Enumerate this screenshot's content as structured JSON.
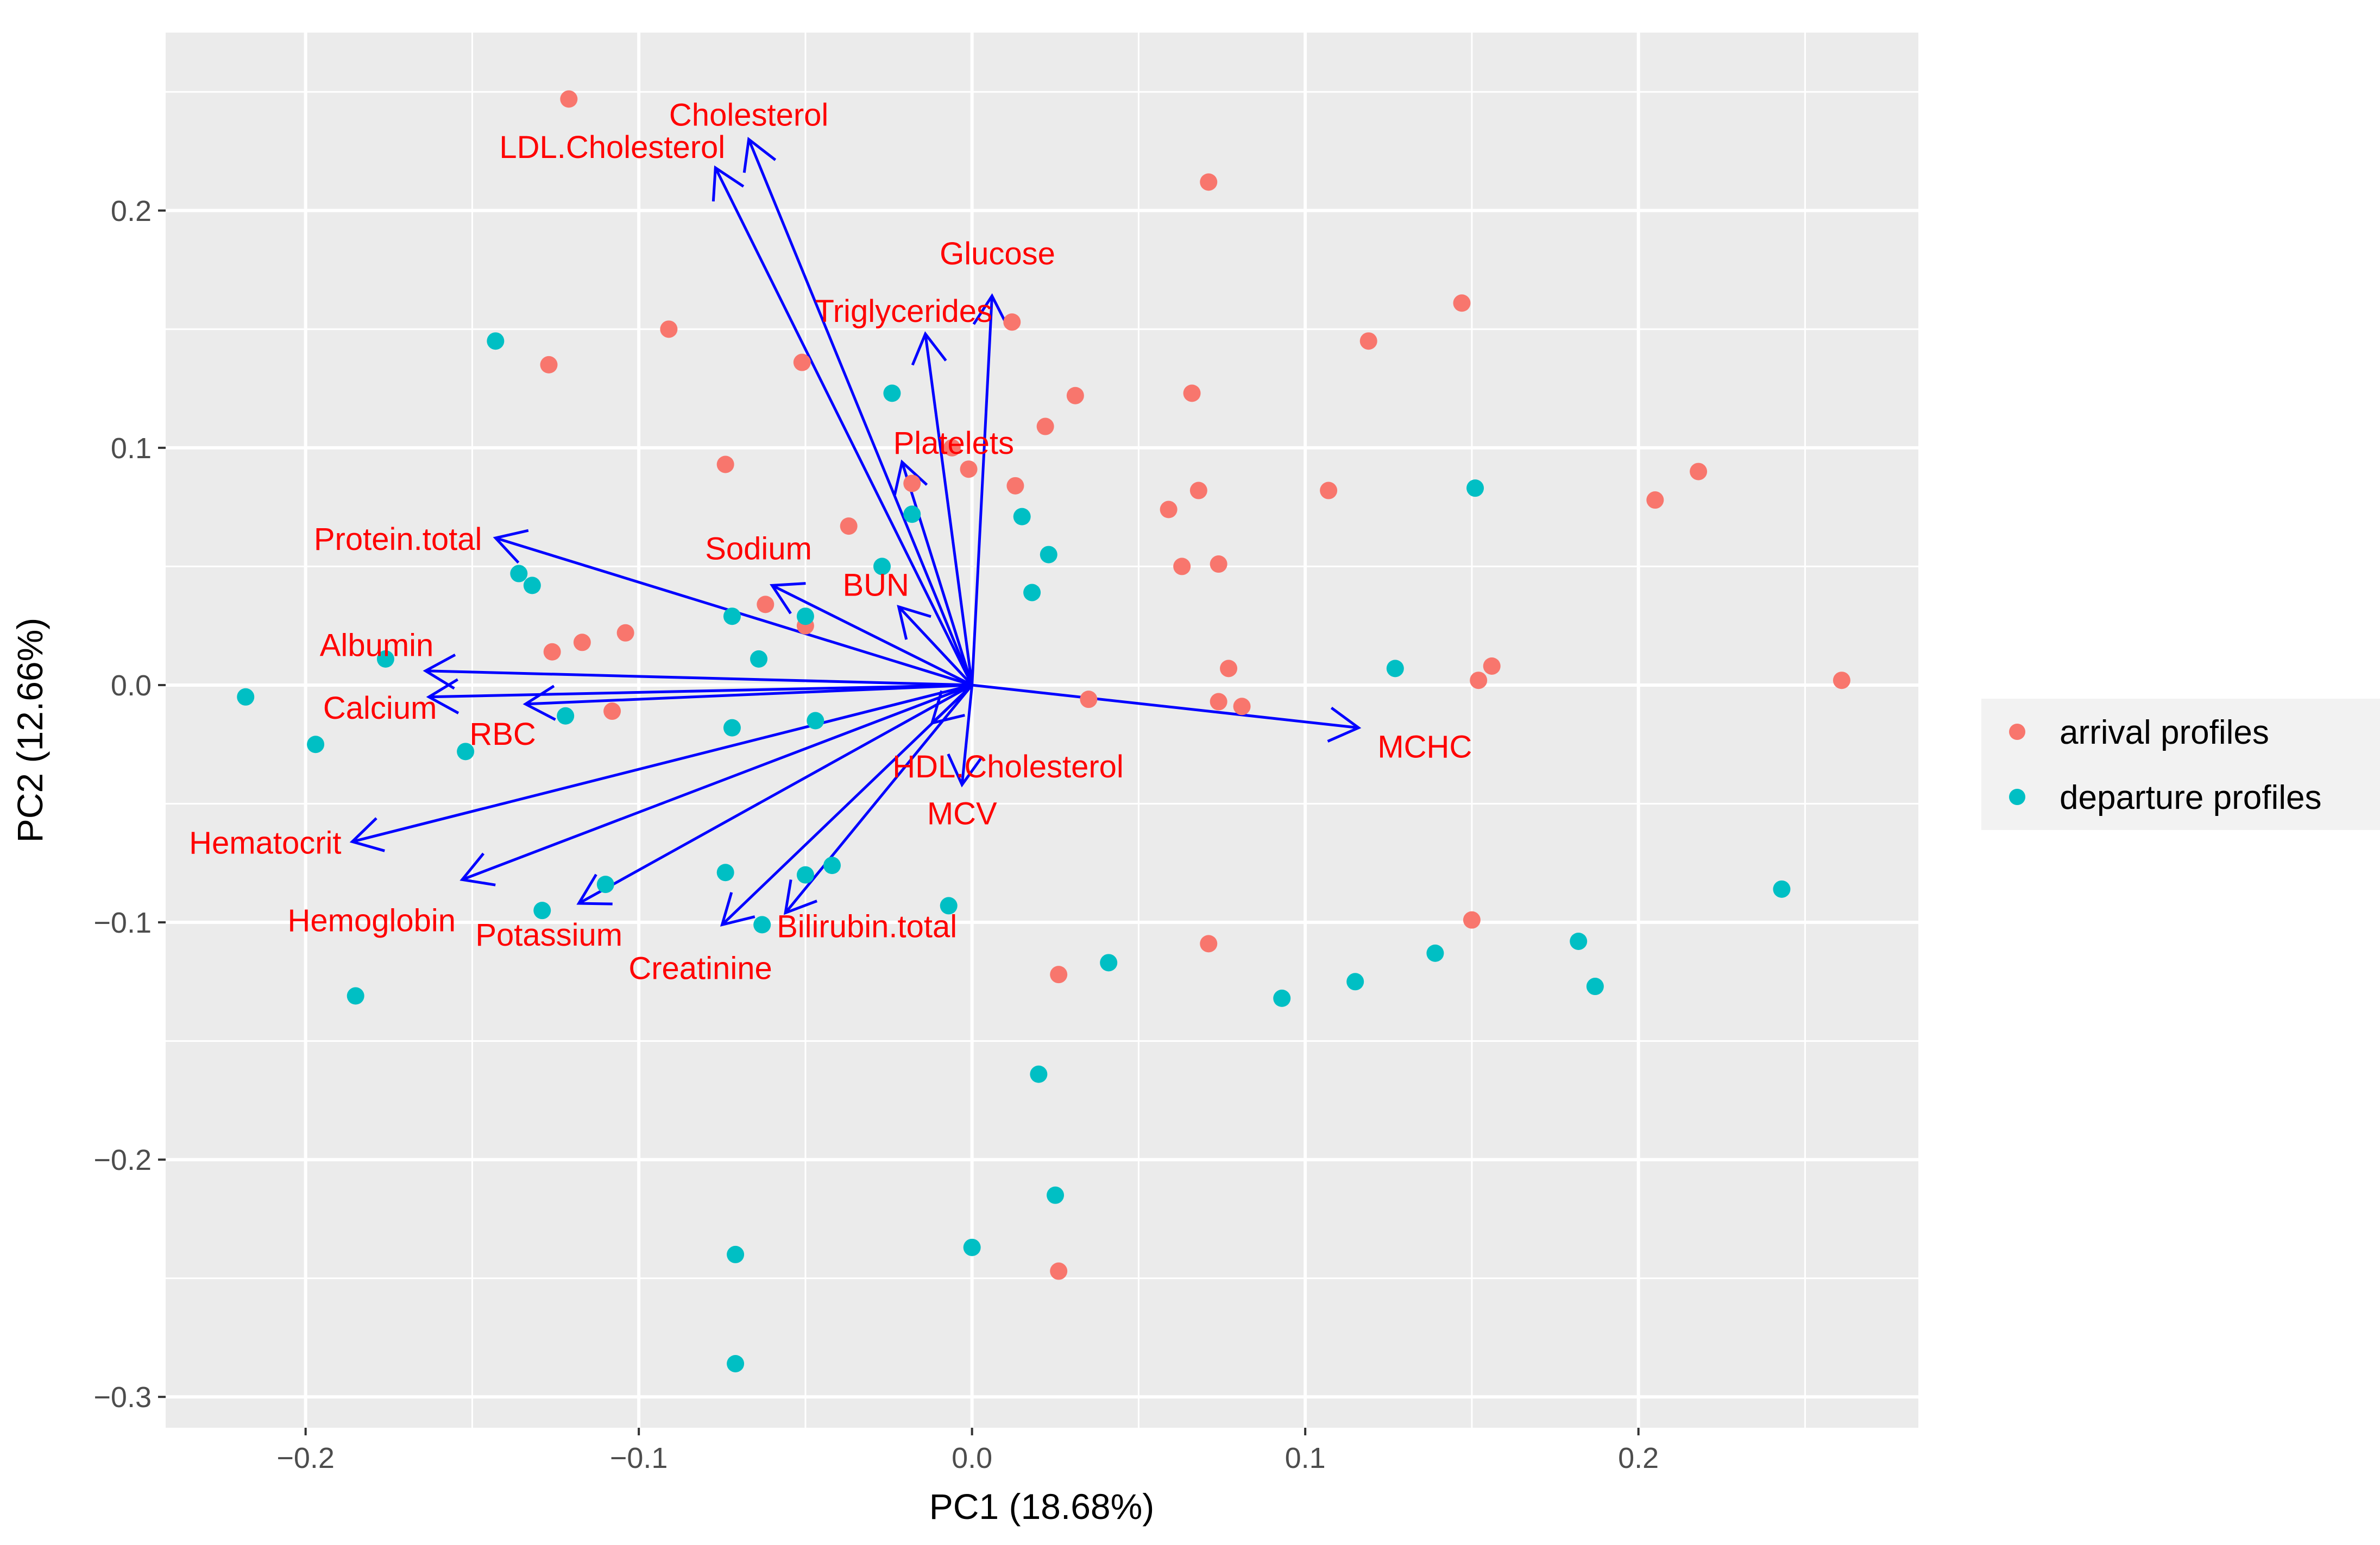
{
  "chart_data": {
    "type": "scatter",
    "subtype": "pca-biplot",
    "xlabel": "PC1 (18.68%)",
    "ylabel": "PC2 (12.66%)",
    "xlim": [
      -0.242,
      0.284
    ],
    "ylim": [
      -0.313,
      0.275
    ],
    "x_ticks": [
      -0.2,
      -0.1,
      0.0,
      0.1,
      0.2
    ],
    "x_tick_labels": [
      "−0.2",
      "−0.1",
      "0.0",
      "0.1",
      "0.2"
    ],
    "y_ticks": [
      -0.3,
      -0.2,
      -0.1,
      0.0,
      0.1,
      0.2
    ],
    "y_tick_labels": [
      "−0.3",
      "−0.2",
      "−0.1",
      "0.0",
      "0.1",
      "0.2"
    ],
    "grid": true,
    "legend_position": "right",
    "colors": {
      "panel_bg": "#ebebeb",
      "grid": "#ffffff",
      "arrow": "#0000ff",
      "label": "#ff0000",
      "arrival": "#f8766d",
      "departure": "#00bfc4"
    },
    "series": [
      {
        "name": "arrival profiles",
        "color": "#f8766d",
        "points": [
          [
            -0.121,
            0.247
          ],
          [
            0.071,
            0.212
          ],
          [
            -0.091,
            0.15
          ],
          [
            -0.127,
            0.135
          ],
          [
            -0.051,
            0.136
          ],
          [
            0.012,
            0.153
          ],
          [
            0.147,
            0.161
          ],
          [
            0.119,
            0.145
          ],
          [
            -0.074,
            0.093
          ],
          [
            0.066,
            0.123
          ],
          [
            0.031,
            0.122
          ],
          [
            0.022,
            0.109
          ],
          [
            0.068,
            0.082
          ],
          [
            0.059,
            0.074
          ],
          [
            0.107,
            0.082
          ],
          [
            0.205,
            0.078
          ],
          [
            0.218,
            0.09
          ],
          [
            -0.006,
            0.1
          ],
          [
            -0.001,
            0.091
          ],
          [
            0.013,
            0.084
          ],
          [
            -0.018,
            0.085
          ],
          [
            -0.037,
            0.067
          ],
          [
            0.063,
            0.05
          ],
          [
            0.074,
            0.051
          ],
          [
            -0.062,
            0.034
          ],
          [
            -0.05,
            0.025
          ],
          [
            -0.104,
            0.022
          ],
          [
            -0.117,
            0.018
          ],
          [
            -0.126,
            0.014
          ],
          [
            0.077,
            0.007
          ],
          [
            0.156,
            0.008
          ],
          [
            0.152,
            0.002
          ],
          [
            0.074,
            -0.007
          ],
          [
            0.081,
            -0.009
          ],
          [
            0.035,
            -0.006
          ],
          [
            -0.108,
            -0.011
          ],
          [
            0.261,
            0.002
          ],
          [
            0.15,
            -0.099
          ],
          [
            0.071,
            -0.109
          ],
          [
            0.026,
            -0.122
          ],
          [
            0.026,
            -0.247
          ]
        ]
      },
      {
        "name": "departure profiles",
        "color": "#00bfc4",
        "points": [
          [
            -0.143,
            0.145
          ],
          [
            -0.024,
            0.123
          ],
          [
            -0.018,
            0.072
          ],
          [
            0.015,
            0.071
          ],
          [
            0.023,
            0.055
          ],
          [
            -0.027,
            0.05
          ],
          [
            -0.136,
            0.047
          ],
          [
            -0.132,
            0.042
          ],
          [
            0.018,
            0.039
          ],
          [
            -0.072,
            0.029
          ],
          [
            -0.05,
            0.029
          ],
          [
            -0.064,
            0.011
          ],
          [
            -0.176,
            0.011
          ],
          [
            0.151,
            0.083
          ],
          [
            0.127,
            0.007
          ],
          [
            -0.218,
            -0.005
          ],
          [
            -0.122,
            -0.013
          ],
          [
            -0.047,
            -0.015
          ],
          [
            -0.072,
            -0.018
          ],
          [
            -0.197,
            -0.025
          ],
          [
            -0.152,
            -0.028
          ],
          [
            -0.074,
            -0.079
          ],
          [
            -0.05,
            -0.08
          ],
          [
            -0.042,
            -0.076
          ],
          [
            -0.11,
            -0.084
          ],
          [
            -0.129,
            -0.095
          ],
          [
            -0.063,
            -0.101
          ],
          [
            -0.007,
            -0.093
          ],
          [
            0.041,
            -0.117
          ],
          [
            0.139,
            -0.113
          ],
          [
            0.182,
            -0.108
          ],
          [
            0.187,
            -0.127
          ],
          [
            0.115,
            -0.125
          ],
          [
            0.093,
            -0.132
          ],
          [
            0.243,
            -0.086
          ],
          [
            -0.185,
            -0.131
          ],
          [
            0.02,
            -0.164
          ],
          [
            0.025,
            -0.215
          ],
          [
            0.0,
            -0.237
          ],
          [
            -0.071,
            -0.24
          ],
          [
            -0.071,
            -0.286
          ]
        ]
      }
    ],
    "loadings": [
      {
        "name": "Cholesterol",
        "x": -0.067,
        "y": 0.23
      },
      {
        "name": "LDL.Cholesterol",
        "x": -0.077,
        "y": 0.218
      },
      {
        "name": "Glucose",
        "x": 0.006,
        "y": 0.164
      },
      {
        "name": "Triglycerides",
        "x": -0.014,
        "y": 0.148
      },
      {
        "name": "Platelets",
        "x": -0.021,
        "y": 0.094
      },
      {
        "name": "Protein.total",
        "x": -0.143,
        "y": 0.062
      },
      {
        "name": "Sodium",
        "x": -0.06,
        "y": 0.042
      },
      {
        "name": "BUN",
        "x": -0.022,
        "y": 0.033
      },
      {
        "name": "Albumin",
        "x": -0.164,
        "y": 0.006
      },
      {
        "name": "Calcium",
        "x": -0.163,
        "y": -0.005
      },
      {
        "name": "RBC",
        "x": -0.134,
        "y": -0.008
      },
      {
        "name": "HDL.Cholesterol",
        "x": -0.012,
        "y": -0.016
      },
      {
        "name": "MCHC",
        "x": 0.116,
        "y": -0.018
      },
      {
        "name": "MCV",
        "x": -0.003,
        "y": -0.042
      },
      {
        "name": "Hematocrit",
        "x": -0.186,
        "y": -0.066
      },
      {
        "name": "Hemoglobin",
        "x": -0.153,
        "y": -0.082
      },
      {
        "name": "Potassium",
        "x": -0.118,
        "y": -0.092
      },
      {
        "name": "Creatinine",
        "x": -0.075,
        "y": -0.101
      },
      {
        "name": "Bilirubin.total",
        "x": -0.056,
        "y": -0.096
      }
    ]
  }
}
